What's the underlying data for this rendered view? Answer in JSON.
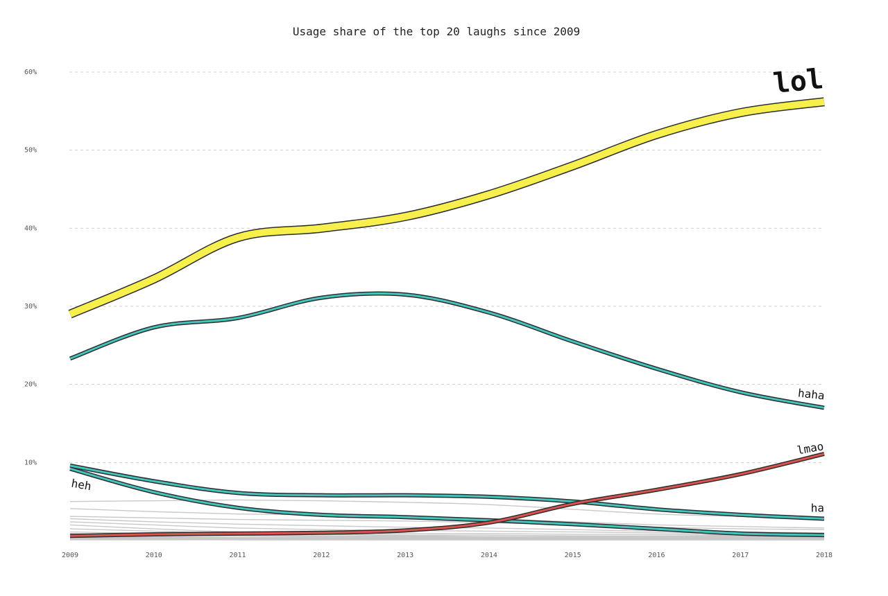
{
  "chart_data": {
    "type": "line",
    "title": "Usage share of the top 20 laughs since 2009",
    "x": [
      2009,
      2010,
      2011,
      2012,
      2013,
      2014,
      2015,
      2016,
      2017,
      2018
    ],
    "x_tick_labels": [
      "2009",
      "2010",
      "2011",
      "2012",
      "2013",
      "2014",
      "2015",
      "2016",
      "2017",
      "2018"
    ],
    "y_tick_labels": [
      "10%",
      "20%",
      "30%",
      "40%",
      "50%",
      "60%"
    ],
    "y_ticks": [
      10,
      20,
      30,
      40,
      50,
      60
    ],
    "ylim": [
      0,
      60
    ],
    "grid": true,
    "series": [
      {
        "name": "lol",
        "color": "#f7f04c",
        "highlight": true,
        "values": [
          29,
          33.5,
          38.8,
          40,
          41.5,
          44.3,
          48,
          52,
          54.8,
          56.2
        ]
      },
      {
        "name": "haha",
        "color": "#44c4bd",
        "highlight": true,
        "values": [
          23.3,
          27.3,
          28.5,
          31.1,
          31.5,
          29.2,
          25.5,
          22,
          19,
          17
        ]
      },
      {
        "name": "lmao",
        "color": "#d9534f",
        "highlight": true,
        "values": [
          0.6,
          0.8,
          0.9,
          1,
          1.3,
          2.3,
          4.7,
          6.5,
          8.5,
          11.1
        ]
      },
      {
        "name": "ha",
        "color": "#44c4bd",
        "highlight": true,
        "values": [
          9.6,
          7.6,
          6.1,
          5.8,
          5.8,
          5.6,
          5,
          4,
          3.3,
          2.8
        ]
      },
      {
        "name": "heh",
        "color": "#44c4bd",
        "highlight": true,
        "values": [
          9.2,
          6.2,
          4.2,
          3.3,
          3,
          2.6,
          2.1,
          1.5,
          0.9,
          0.7
        ]
      },
      {
        "name": "",
        "color": "#c8c8c8",
        "highlight": false,
        "values": [
          5,
          5.1,
          5.2,
          5.1,
          4.9,
          4.6,
          4,
          3.4,
          3.1,
          3
        ]
      },
      {
        "name": "",
        "color": "#c8c8c8",
        "highlight": false,
        "values": [
          4.1,
          3.7,
          3.4,
          3.3,
          3.1,
          2.8,
          2.4,
          2,
          1.8,
          1.6
        ]
      },
      {
        "name": "",
        "color": "#c8c8c8",
        "highlight": false,
        "values": [
          3.1,
          2.9,
          2.7,
          2.6,
          2.5,
          2.3,
          2,
          1.7,
          1.5,
          1.4
        ]
      },
      {
        "name": "",
        "color": "#c8c8c8",
        "highlight": false,
        "values": [
          2.8,
          2.4,
          2.1,
          1.9,
          1.7,
          1.6,
          1.4,
          1.2,
          1.1,
          1
        ]
      },
      {
        "name": "",
        "color": "#c8c8c8",
        "highlight": false,
        "values": [
          2.4,
          2,
          1.6,
          1.4,
          1.3,
          1.2,
          1.1,
          1,
          0.9,
          0.9
        ]
      },
      {
        "name": "",
        "color": "#c8c8c8",
        "highlight": false,
        "values": [
          2,
          1.5,
          1.1,
          1,
          0.9,
          0.9,
          0.8,
          0.8,
          0.7,
          0.7
        ]
      },
      {
        "name": "",
        "color": "#c8c8c8",
        "highlight": false,
        "values": [
          1.5,
          1.2,
          0.9,
          0.8,
          0.7,
          0.7,
          0.6,
          0.6,
          0.6,
          0.6
        ]
      },
      {
        "name": "",
        "color": "#c8c8c8",
        "highlight": false,
        "values": [
          1.1,
          0.9,
          0.7,
          0.6,
          0.6,
          0.5,
          0.5,
          0.5,
          0.5,
          0.5
        ]
      },
      {
        "name": "",
        "color": "#c8c8c8",
        "highlight": false,
        "values": [
          0.9,
          0.7,
          0.6,
          0.5,
          0.5,
          0.5,
          0.4,
          0.4,
          0.4,
          0.4
        ]
      },
      {
        "name": "",
        "color": "#c8c8c8",
        "highlight": false,
        "values": [
          0.6,
          0.5,
          0.4,
          0.4,
          0.4,
          0.4,
          0.3,
          0.3,
          0.3,
          0.3
        ]
      },
      {
        "name": "",
        "color": "#c8c8c8",
        "highlight": false,
        "values": [
          0.5,
          0.4,
          0.3,
          0.3,
          0.3,
          0.3,
          0.3,
          0.2,
          0.2,
          0.2
        ]
      },
      {
        "name": "",
        "color": "#c8c8c8",
        "highlight": false,
        "values": [
          0.4,
          0.3,
          0.3,
          0.2,
          0.2,
          0.2,
          0.2,
          0.2,
          0.2,
          0.2
        ]
      },
      {
        "name": "",
        "color": "#c8c8c8",
        "highlight": false,
        "values": [
          0.3,
          0.2,
          0.2,
          0.2,
          0.2,
          0.1,
          0.1,
          0.1,
          0.1,
          0.1
        ]
      },
      {
        "name": "",
        "color": "#c8c8c8",
        "highlight": false,
        "values": [
          0.2,
          0.2,
          0.1,
          0.1,
          0.1,
          0.1,
          0.1,
          0.1,
          0.1,
          0.1
        ]
      },
      {
        "name": "",
        "color": "#c8c8c8",
        "highlight": false,
        "values": [
          0.1,
          0.1,
          0.1,
          0.1,
          0.1,
          0.1,
          0.1,
          0.1,
          0.1,
          0.1
        ]
      }
    ]
  }
}
